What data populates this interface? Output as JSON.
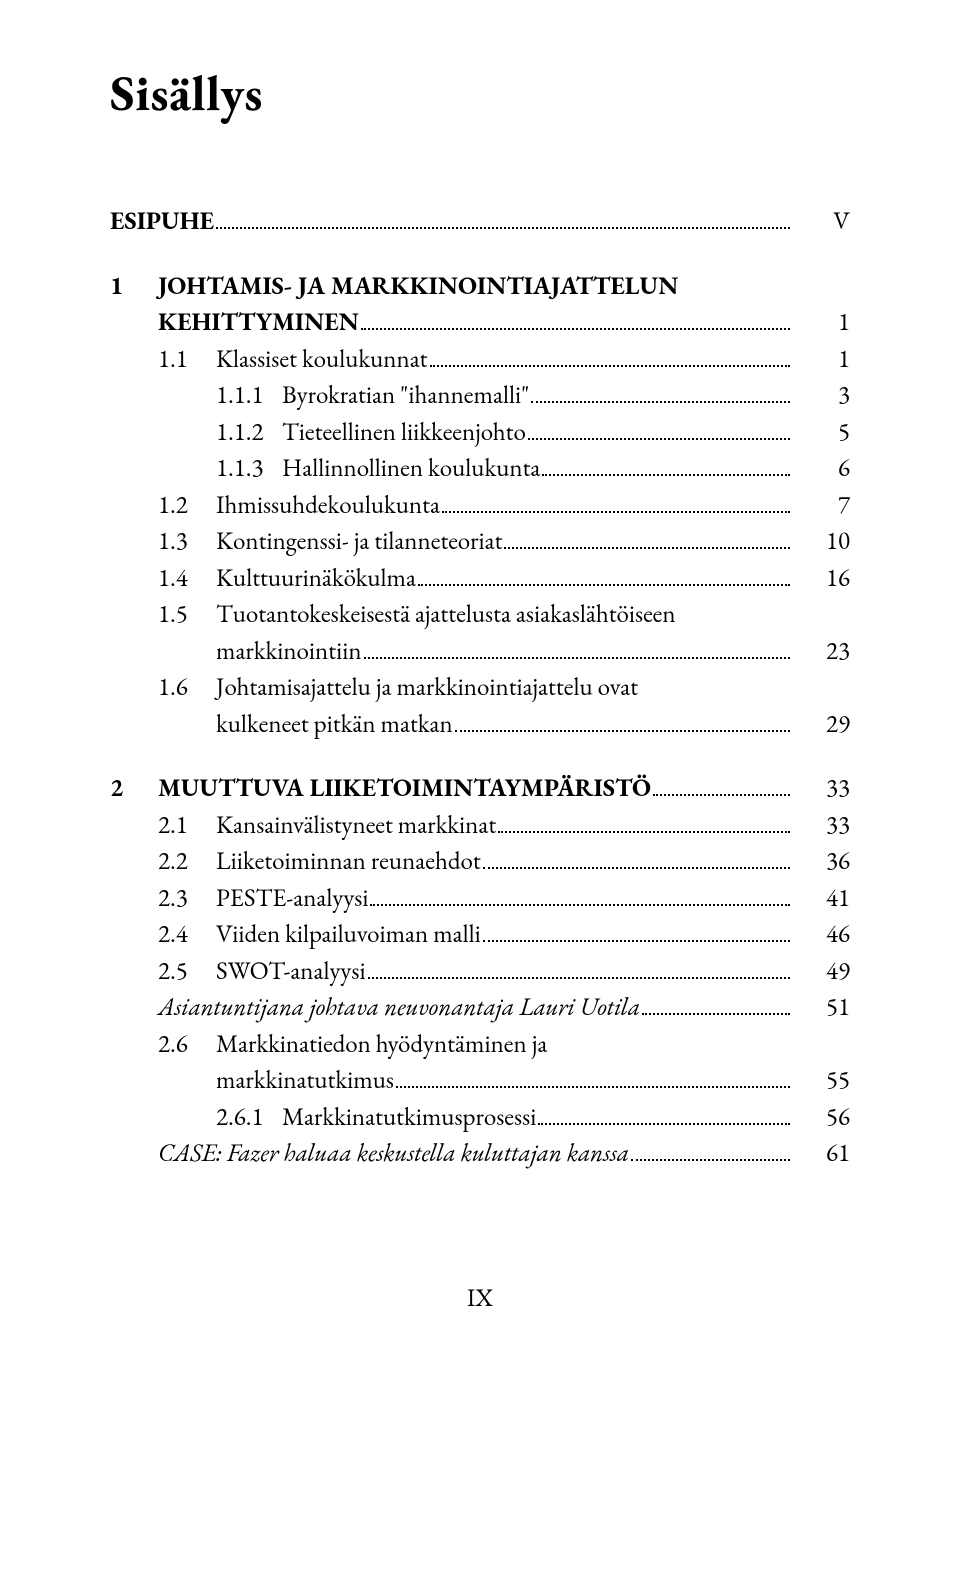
{
  "title": "Sisällys",
  "entries": [
    {
      "level": 0,
      "num": "",
      "text_lines": [
        "ESIPUHE"
      ],
      "page": "V",
      "bold": true
    },
    {
      "gap": true
    },
    {
      "level": 0,
      "num": "1",
      "text_lines": [
        "JOHTAMIS- JA MARKKINOINTIAJATTELUN",
        "KEHITTYMINEN"
      ],
      "page": "1",
      "bold": true
    },
    {
      "level": 1,
      "num": "1.1",
      "text_lines": [
        "Klassiset koulukunnat"
      ],
      "page": "1"
    },
    {
      "level": 2,
      "num": "1.1.1",
      "text_lines": [
        "Byrokratian \"ihannemalli\""
      ],
      "page": "3"
    },
    {
      "level": 2,
      "num": "1.1.2",
      "text_lines": [
        "Tieteellinen liikkeenjohto"
      ],
      "page": "5"
    },
    {
      "level": 2,
      "num": "1.1.3",
      "text_lines": [
        "Hallinnollinen koulukunta"
      ],
      "page": "6"
    },
    {
      "level": 1,
      "num": "1.2",
      "text_lines": [
        "Ihmissuhdekoulukunta"
      ],
      "page": "7"
    },
    {
      "level": 1,
      "num": "1.3",
      "text_lines": [
        "Kontingenssi- ja tilanneteoriat"
      ],
      "page": "10"
    },
    {
      "level": 1,
      "num": "1.4",
      "text_lines": [
        "Kulttuurinäkökulma"
      ],
      "page": "16"
    },
    {
      "level": 1,
      "num": "1.5",
      "text_lines": [
        "Tuotantokeskeisestä ajattelusta asiakaslähtöiseen",
        "markkinointiin"
      ],
      "page": "23"
    },
    {
      "level": 1,
      "num": "1.6",
      "text_lines": [
        "Johtamisajattelu ja markkinointiajattelu ovat",
        "kulkeneet pitkän matkan"
      ],
      "page": "29"
    },
    {
      "gap": true
    },
    {
      "level": 0,
      "num": "2",
      "text_lines": [
        "MUUTTUVA LIIKETOIMINTAYMPÄRISTÖ"
      ],
      "page": "33",
      "bold": true
    },
    {
      "level": 1,
      "num": "2.1",
      "text_lines": [
        "Kansainvälistyneet markkinat"
      ],
      "page": "33"
    },
    {
      "level": 1,
      "num": "2.2",
      "text_lines": [
        "Liiketoiminnan reunaehdot"
      ],
      "page": "36"
    },
    {
      "level": 1,
      "num": "2.3",
      "text_lines": [
        "PESTE-analyysi"
      ],
      "page": "41"
    },
    {
      "level": 1,
      "num": "2.4",
      "text_lines": [
        "Viiden kilpailuvoiman malli"
      ],
      "page": "46"
    },
    {
      "level": 1,
      "num": "2.5",
      "text_lines": [
        "SWOT-analyysi"
      ],
      "page": "49"
    },
    {
      "level": 2,
      "num": "",
      "text_lines": [
        "Asiantuntijana johtava neuvonantaja Lauri Uotila"
      ],
      "page": "51",
      "italic": true,
      "noindent": true
    },
    {
      "level": 1,
      "num": "2.6",
      "text_lines": [
        "Markkinatiedon hyödyntäminen ja",
        "markkinatutkimus"
      ],
      "page": "55"
    },
    {
      "level": 2,
      "num": "2.6.1",
      "text_lines": [
        "Markkinatutkimusprosessi"
      ],
      "page": "56"
    },
    {
      "level": 2,
      "num": "",
      "text_lines": [
        "CASE: Fazer haluaa keskustella kuluttajan kanssa"
      ],
      "page": "61",
      "italic": true,
      "noindent": true
    }
  ],
  "footer": "IX",
  "colors": {
    "text": "#000000",
    "background": "#ffffff"
  },
  "typography": {
    "title_fontsize": 50,
    "body_fontsize": 25,
    "font_family": "Garamond, Georgia, serif"
  }
}
